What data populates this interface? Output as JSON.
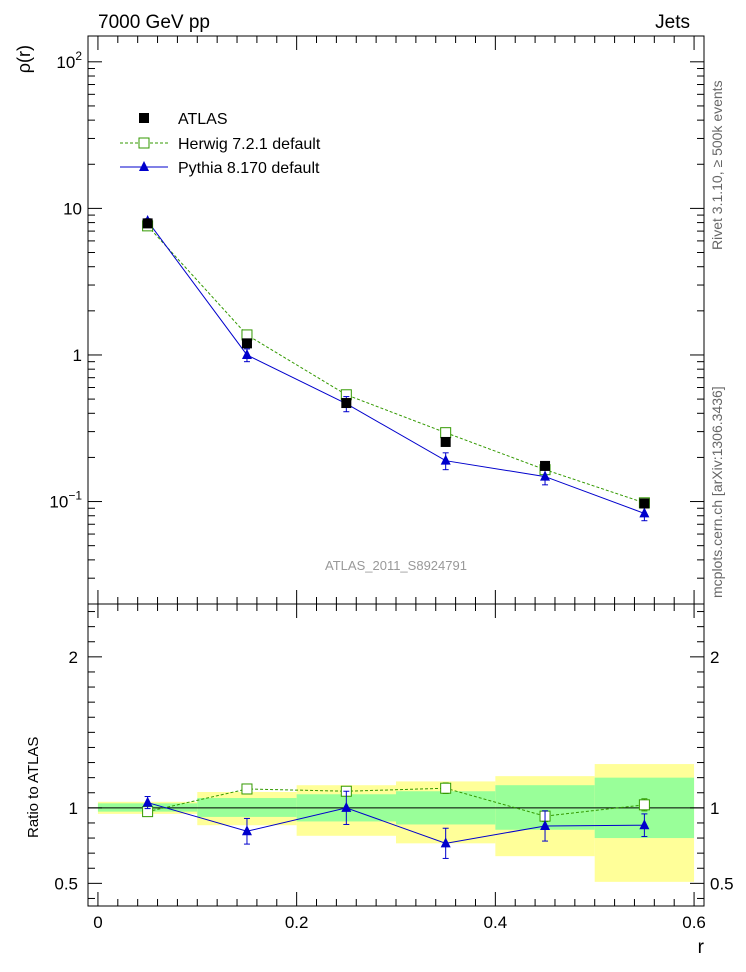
{
  "header": {
    "left": "7000 GeV pp",
    "right": "Jets"
  },
  "side_labels": {
    "rivet_prefix": "Rivet 3.1.10, ",
    "rivet_suffix": "≥ 500k events",
    "mcplots": "mcplots.cern.ch [arXiv:1306.3436]"
  },
  "chart_data": [
    {
      "panel": "main",
      "type": "scatter",
      "title": "ATLAS_2011_S8924791",
      "xlabel": "r",
      "ylabel": "ρ(r)",
      "yscale": "log",
      "ylim": [
        0.02,
        150
      ],
      "xlim": [
        -0.01,
        0.61
      ],
      "yticks": [
        {
          "value": 0.1,
          "base": "10",
          "exp": "−1"
        },
        {
          "value": 1,
          "label": "1"
        },
        {
          "value": 10,
          "label": "10"
        },
        {
          "value": 100,
          "base": "10",
          "exp": "2"
        }
      ],
      "legend": {
        "position": "top-left"
      },
      "x": [
        0.05,
        0.15,
        0.25,
        0.35,
        0.45,
        0.55
      ],
      "series": [
        {
          "name": "ATLAS",
          "color": "#000000",
          "marker": "filled-square",
          "values": [
            7.9,
            1.2,
            0.47,
            0.255,
            0.175,
            0.097
          ]
        },
        {
          "name": "Herwig 7.2.1 default",
          "color": "#339900",
          "marker": "open-square",
          "line": "dashed",
          "values": [
            7.6,
            1.37,
            0.535,
            0.295,
            0.165,
            0.098
          ],
          "err": [
            0.2,
            0.03,
            0.015,
            0.01,
            0.006,
            0.004
          ]
        },
        {
          "name": "Pythia 8.170 default",
          "color": "#0000cc",
          "marker": "filled-triangle",
          "line": "solid",
          "values": [
            8.2,
            1.0,
            0.465,
            0.19,
            0.148,
            0.083
          ],
          "err": [
            0.3,
            0.1,
            0.055,
            0.025,
            0.018,
            0.009
          ]
        }
      ]
    },
    {
      "panel": "ratio",
      "type": "scatter",
      "xlabel": "r",
      "ylabel": "Ratio to ATLAS",
      "ylim": [
        0.35,
        2.35
      ],
      "xlim": [
        -0.01,
        0.61
      ],
      "yticks": [
        0.5,
        1,
        2
      ],
      "xticks": [
        0,
        0.2,
        0.4,
        0.6
      ],
      "bins": [
        [
          0.0,
          0.1
        ],
        [
          0.1,
          0.2
        ],
        [
          0.2,
          0.3
        ],
        [
          0.3,
          0.4
        ],
        [
          0.4,
          0.5
        ],
        [
          0.5,
          0.6
        ]
      ],
      "band_inner": [
        [
          0.975,
          1.03
        ],
        [
          0.94,
          1.065
        ],
        [
          0.91,
          1.09
        ],
        [
          0.89,
          1.11
        ],
        [
          0.855,
          1.15
        ],
        [
          0.8,
          1.2
        ]
      ],
      "band_outer": [
        [
          0.96,
          1.04
        ],
        [
          0.885,
          1.105
        ],
        [
          0.815,
          1.15
        ],
        [
          0.765,
          1.175
        ],
        [
          0.68,
          1.21
        ],
        [
          0.51,
          1.29
        ]
      ],
      "x": [
        0.05,
        0.15,
        0.25,
        0.35,
        0.45,
        0.55
      ],
      "series": [
        {
          "name": "Herwig 7.2.1 default",
          "color": "#339900",
          "marker": "open-square",
          "line": "dashed",
          "values": [
            0.975,
            1.125,
            1.11,
            1.13,
            0.945,
            1.02
          ],
          "err": [
            0.01,
            0.025,
            0.03,
            0.035,
            0.035,
            0.04
          ]
        },
        {
          "name": "Pythia 8.170 default",
          "color": "#0000cc",
          "marker": "filled-triangle",
          "line": "solid",
          "values": [
            1.035,
            0.845,
            1.0,
            0.765,
            0.88,
            0.885
          ],
          "err": [
            0.04,
            0.085,
            0.11,
            0.1,
            0.1,
            0.075
          ]
        }
      ]
    }
  ]
}
